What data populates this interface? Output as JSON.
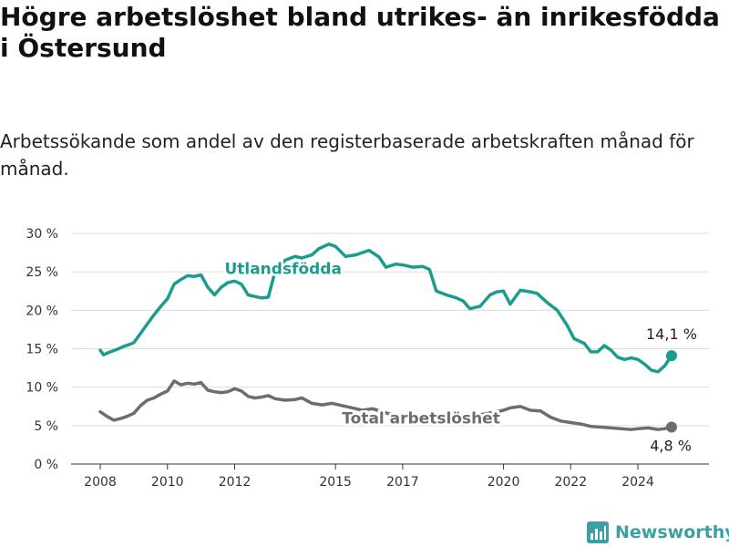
{
  "title": "Högre arbetslöshet bland utrikes- än inrikesfödda i Östersund",
  "subtitle": "Arbetssökande som andel av den registerbaserade arbetskraften månad för månad.",
  "brand": {
    "name": "Newsworthy",
    "icon": "bar-chart-logo-icon",
    "color": "#3d9ea3"
  },
  "chart_data": {
    "type": "line",
    "xlim": [
      2008,
      2025.3
    ],
    "ylim": [
      0,
      30
    ],
    "y_ticks": [
      0,
      5,
      10,
      15,
      20,
      25,
      30
    ],
    "y_tick_labels": [
      "0 %",
      "5 %",
      "10 %",
      "15 %",
      "20 %",
      "25 %",
      "30 %"
    ],
    "x_ticks": [
      2008,
      2010,
      2012,
      2015,
      2017,
      2020,
      2022,
      2024
    ],
    "x_tick_labels": [
      "2008",
      "2010",
      "2012",
      "2015",
      "2017",
      "2020",
      "2022",
      "2024"
    ],
    "grid": "horizontal",
    "series": [
      {
        "name": "Utlandsfödda",
        "color": "#1a9c8f",
        "end_label": "14,1 %",
        "x": [
          2008.0,
          2008.1,
          2008.3,
          2008.5,
          2008.7,
          2008.9,
          2009.0,
          2009.2,
          2009.4,
          2009.6,
          2009.8,
          2010.0,
          2010.2,
          2010.4,
          2010.6,
          2010.8,
          2011.0,
          2011.2,
          2011.4,
          2011.6,
          2011.8,
          2012.0,
          2012.2,
          2012.4,
          2012.6,
          2012.8,
          2013.0,
          2013.2,
          2013.5,
          2013.8,
          2014.0,
          2014.3,
          2014.5,
          2014.8,
          2015.0,
          2015.3,
          2015.6,
          2016.0,
          2016.3,
          2016.5,
          2016.8,
          2017.0,
          2017.3,
          2017.6,
          2017.8,
          2018.0,
          2018.3,
          2018.6,
          2018.8,
          2019.0,
          2019.3,
          2019.6,
          2019.8,
          2020.0,
          2020.2,
          2020.5,
          2020.8,
          2021.0,
          2021.3,
          2021.6,
          2021.9,
          2022.1,
          2022.4,
          2022.6,
          2022.8,
          2023.0,
          2023.2,
          2023.4,
          2023.6,
          2023.8,
          2024.0,
          2024.2,
          2024.4,
          2024.6,
          2024.8,
          2025.0
        ],
        "values": [
          14.8,
          14.2,
          14.6,
          14.9,
          15.3,
          15.6,
          15.8,
          17.0,
          18.2,
          19.4,
          20.5,
          21.5,
          23.4,
          24.0,
          24.5,
          24.4,
          24.6,
          23.0,
          22.0,
          23.0,
          23.6,
          23.8,
          23.4,
          22.0,
          21.8,
          21.6,
          21.7,
          25.0,
          26.5,
          27.0,
          26.8,
          27.2,
          28.0,
          28.6,
          28.3,
          27.0,
          27.2,
          27.8,
          26.9,
          25.6,
          26.0,
          25.9,
          25.6,
          25.7,
          25.3,
          22.5,
          22.0,
          21.6,
          21.2,
          20.2,
          20.5,
          22.0,
          22.4,
          22.5,
          20.8,
          22.6,
          22.4,
          22.2,
          21.0,
          20.0,
          18.0,
          16.3,
          15.7,
          14.6,
          14.6,
          15.4,
          14.8,
          13.9,
          13.6,
          13.8,
          13.6,
          13.0,
          12.2,
          12.0,
          12.8,
          14.1
        ]
      },
      {
        "name": "Total arbetslöshet",
        "color": "#6d6d70",
        "end_label": "4,8 %",
        "x": [
          2008.0,
          2008.2,
          2008.4,
          2008.6,
          2008.8,
          2009.0,
          2009.2,
          2009.4,
          2009.6,
          2009.8,
          2010.0,
          2010.2,
          2010.4,
          2010.6,
          2010.8,
          2011.0,
          2011.2,
          2011.4,
          2011.6,
          2011.8,
          2012.0,
          2012.2,
          2012.4,
          2012.6,
          2012.8,
          2013.0,
          2013.2,
          2013.5,
          2013.8,
          2014.0,
          2014.3,
          2014.6,
          2014.9,
          2015.2,
          2015.5,
          2015.8,
          2016.1,
          2016.4,
          2016.7,
          2017.0,
          2017.4,
          2017.8,
          2018.2,
          2018.6,
          2019.0,
          2019.4,
          2019.8,
          2020.0,
          2020.2,
          2020.5,
          2020.8,
          2021.1,
          2021.4,
          2021.7,
          2022.0,
          2022.3,
          2022.6,
          2022.9,
          2023.2,
          2023.5,
          2023.8,
          2024.0,
          2024.3,
          2024.6,
          2024.8,
          2025.0
        ],
        "values": [
          6.8,
          6.2,
          5.7,
          5.9,
          6.2,
          6.6,
          7.6,
          8.3,
          8.6,
          9.1,
          9.5,
          10.8,
          10.3,
          10.5,
          10.4,
          10.6,
          9.6,
          9.4,
          9.3,
          9.4,
          9.8,
          9.5,
          8.8,
          8.6,
          8.7,
          8.9,
          8.5,
          8.3,
          8.4,
          8.6,
          7.9,
          7.7,
          7.9,
          7.6,
          7.3,
          7.0,
          7.2,
          6.8,
          6.4,
          6.2,
          6.1,
          6.0,
          6.2,
          6.4,
          6.2,
          6.5,
          6.8,
          7.0,
          7.3,
          7.5,
          7.0,
          6.9,
          6.1,
          5.6,
          5.4,
          5.2,
          4.9,
          4.8,
          4.7,
          4.6,
          4.5,
          4.6,
          4.7,
          4.5,
          4.6,
          4.8
        ]
      }
    ]
  }
}
